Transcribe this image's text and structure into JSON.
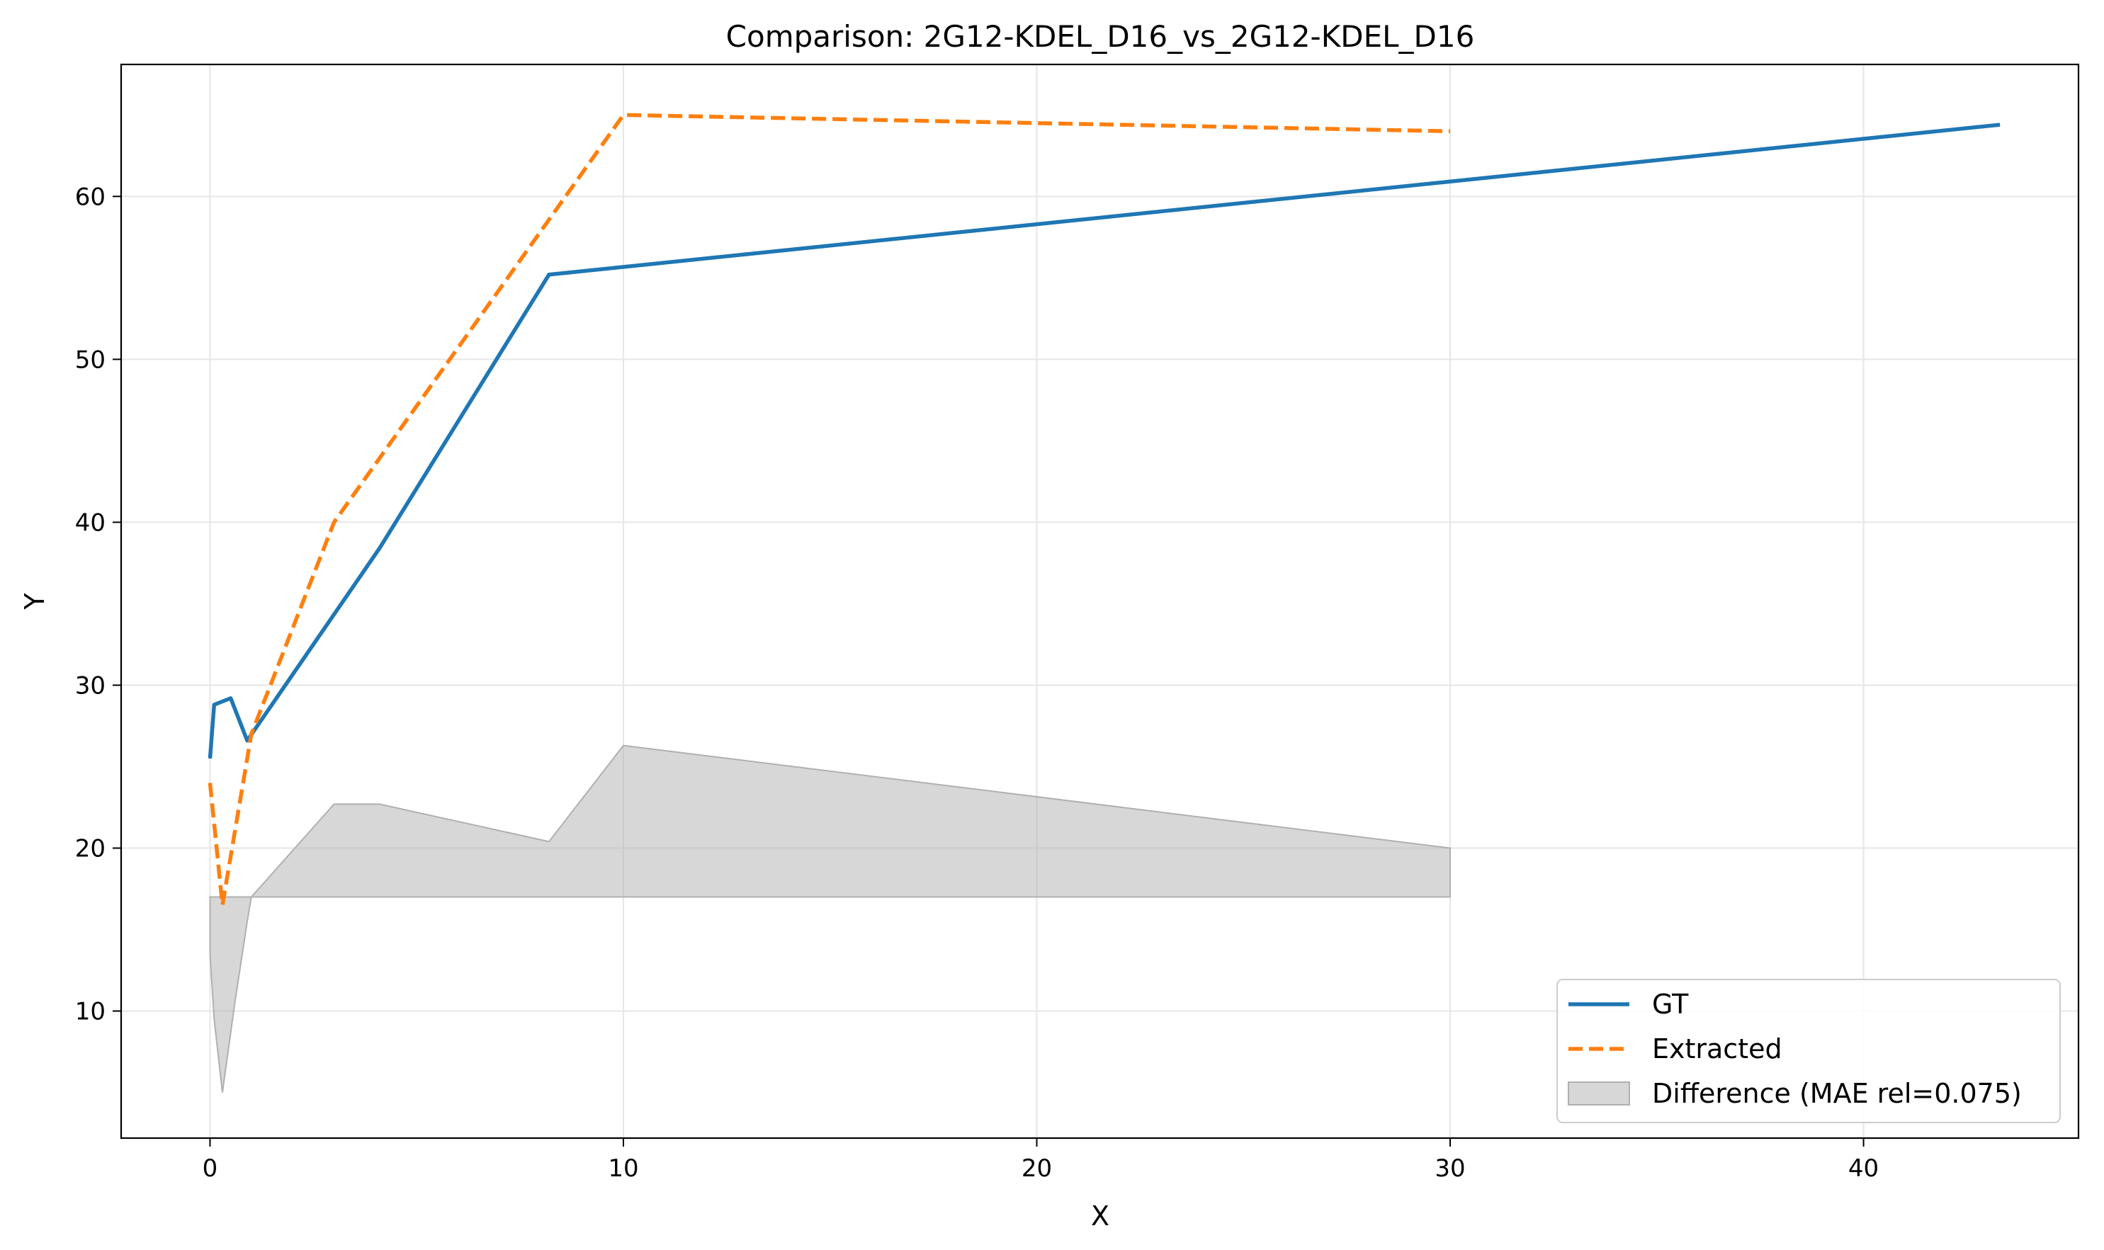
{
  "chart_data": {
    "type": "line",
    "title": "Comparison: 2G12-KDEL_D16_vs_2G12-KDEL_D16",
    "xlabel": "X",
    "ylabel": "Y",
    "xlim": [
      -2.15,
      45.2
    ],
    "ylim": [
      2.2,
      68.1
    ],
    "xticks": [
      0,
      10,
      20,
      30,
      40
    ],
    "yticks": [
      10,
      20,
      30,
      40,
      50,
      60
    ],
    "grid": true,
    "legend_position": "lower-right",
    "series": [
      {
        "name": "GT",
        "color": "#1f77b4",
        "style": "solid",
        "x": [
          0,
          0.1,
          0.5,
          0.9,
          4.1,
          8.2,
          43.3
        ],
        "y": [
          25.5,
          28.8,
          29.2,
          26.6,
          38.4,
          55.2,
          64.4
        ]
      },
      {
        "name": "Extracted",
        "color": "#ff7f0e",
        "style": "dashed",
        "x": [
          0,
          0.3,
          1.0,
          3.0,
          10.0,
          30.0
        ],
        "y": [
          24.0,
          16.5,
          27.0,
          40.0,
          65.0,
          64.0
        ]
      },
      {
        "name": "Difference (MAE rel=0.075)",
        "color": "#b0b0b0",
        "style": "fill",
        "x": [
          0,
          0.1,
          0.3,
          0.6,
          0.9,
          1.0,
          3.0,
          4.1,
          8.2,
          10.0,
          30.0
        ],
        "y_upper": [
          17.0,
          17.0,
          17.0,
          17.0,
          17.0,
          17.0,
          22.7,
          22.7,
          20.4,
          26.3,
          20.0
        ],
        "y_lower": [
          13.5,
          9.5,
          5.0,
          10.5,
          15.5,
          17.0,
          17.0,
          17.0,
          17.0,
          17.0,
          17.0
        ]
      }
    ]
  }
}
